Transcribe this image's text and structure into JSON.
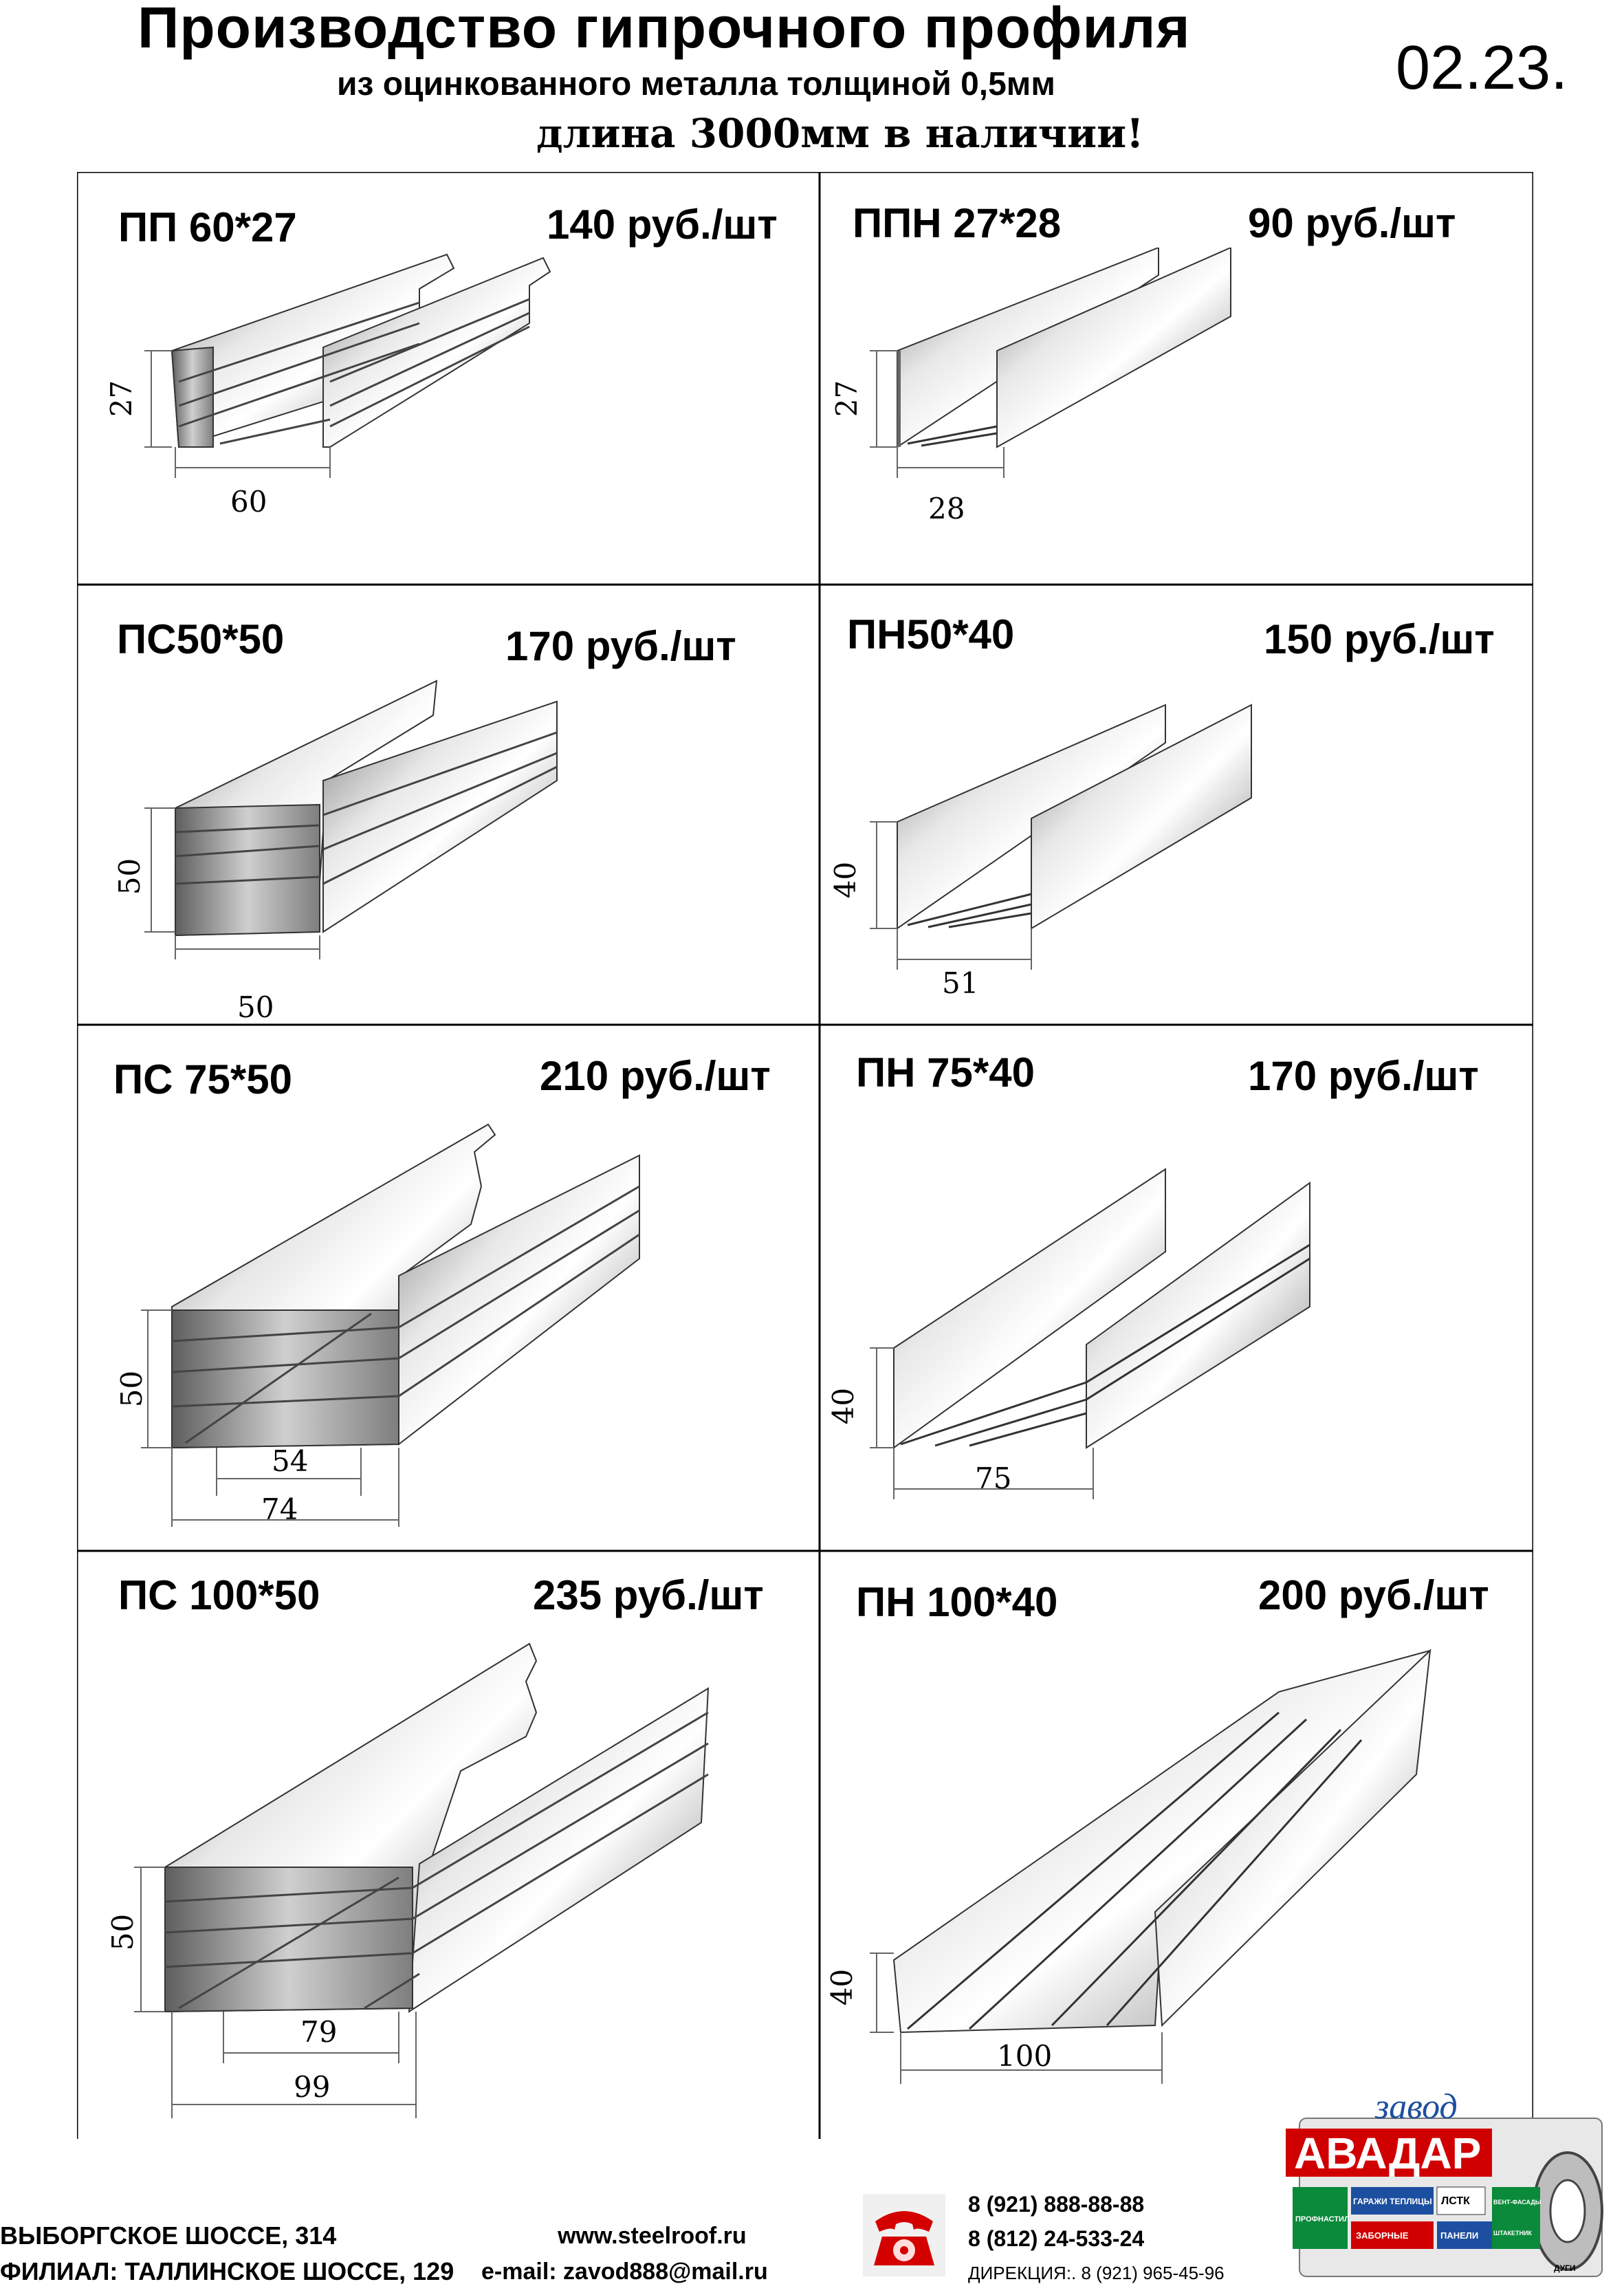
{
  "header": {
    "title": "Производство гипрочного профиля",
    "subtitle": "из оцинкованного металла  толщиной 0,5мм",
    "availability": "длина 3000мм в наличии!",
    "date": "02.23."
  },
  "products": [
    {
      "name": "ПП 60*27",
      "price": "140 руб./шт",
      "height": "27",
      "widths": [
        "60"
      ]
    },
    {
      "name": "ППН 27*28",
      "price": "90 руб./шт",
      "height": "27",
      "widths": [
        "28"
      ]
    },
    {
      "name": "ПС50*50",
      "price": "170 руб./шт",
      "height": "50",
      "widths": [
        "50"
      ]
    },
    {
      "name": "ПН50*40",
      "price": "150 руб./шт",
      "height": "40",
      "widths": [
        "51"
      ]
    },
    {
      "name": "ПС 75*50",
      "price": "210 руб./шт",
      "height": "50",
      "widths": [
        "54",
        "74"
      ]
    },
    {
      "name": "ПН 75*40",
      "price": "170 руб./шт",
      "height": "40",
      "widths": [
        "75"
      ]
    },
    {
      "name": "ПС 100*50",
      "price": "235 руб./шт",
      "height": "50",
      "widths": [
        "79",
        "99"
      ]
    },
    {
      "name": "ПН 100*40",
      "price": "200 руб./шт",
      "height": "40",
      "widths": [
        "100"
      ]
    }
  ],
  "footer": {
    "address_main": "ВЫБОРГСКОЕ ШОССЕ, 314",
    "address_branch": "ФИЛИАЛ: ТАЛЛИНСКОЕ ШОССЕ, 129",
    "website": "www.steelroof.ru",
    "email": "e-mail: zavod888@mail.ru",
    "phone1": "8 (921) 888-88-88",
    "phone2": "8 (812) 24-533-24",
    "phone_director": "ДИРЕКЦИЯ:. 8 (921) 965-45-96"
  },
  "logo": {
    "top_word": "завод",
    "brand": "АВАДАР",
    "tag_gates": "ГАРАЖИ ТЕПЛИЦЫ",
    "tag_lstk": "ЛСТК",
    "tag_fence": "ЗАБОРНЫЕ",
    "tag_panels": "ПАНЕЛИ",
    "tag_facade": "ВЕНТ-ФАСАДЫ",
    "tag_picket": "ШТАКЕТНИК",
    "tag_profile": "ПРОФНАСТИЛ",
    "tag_arcs": "ДУГИ"
  }
}
